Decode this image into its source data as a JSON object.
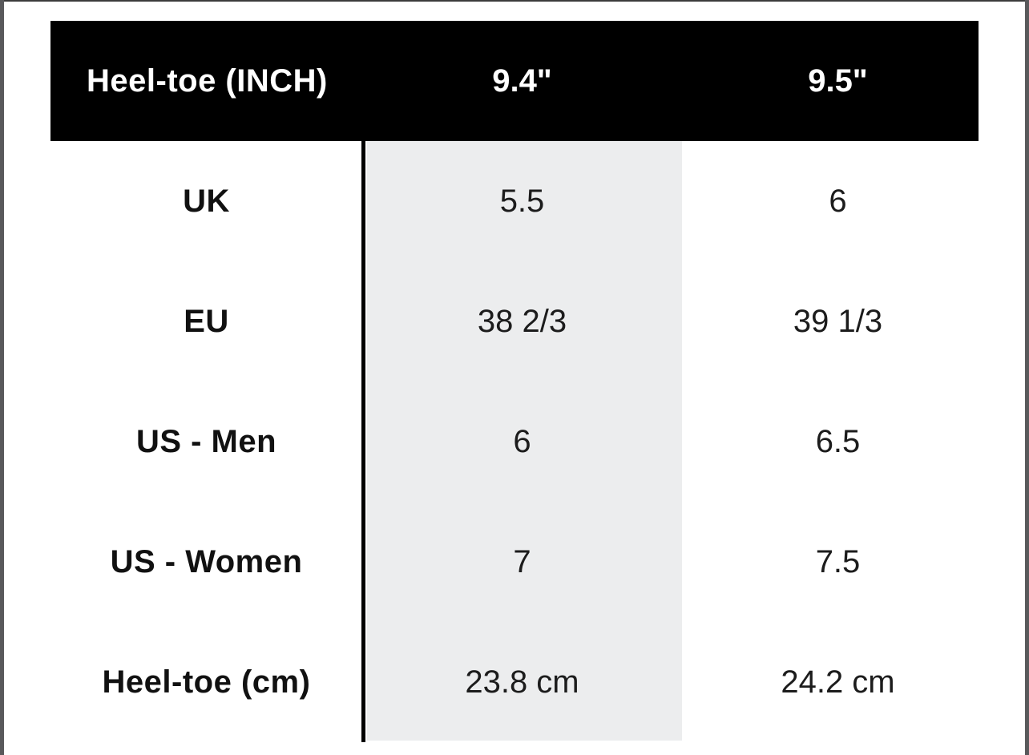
{
  "page": {
    "background": "#ffffff",
    "frame_color": "#59595b",
    "header_bg": "#000000",
    "header_text_color": "#ffffff",
    "highlight_color": "#ECEDEE",
    "divider_color": "#000000"
  },
  "table": {
    "header": {
      "label": "Heel-toe (INCH)",
      "columns": [
        "9.4\"",
        "9.5\""
      ]
    },
    "highlighted_column": "9.4\"",
    "rows": [
      {
        "label": "UK",
        "values": [
          "5.5",
          "6"
        ]
      },
      {
        "label": "EU",
        "values": [
          "38 2/3",
          "39 1/3"
        ]
      },
      {
        "label": "US - Men",
        "values": [
          "6",
          "6.5"
        ]
      },
      {
        "label": "US - Women",
        "values": [
          "7",
          "7.5"
        ]
      },
      {
        "label": "Heel-toe (cm)",
        "values": [
          "23.8 cm",
          "24.2 cm"
        ]
      }
    ]
  }
}
